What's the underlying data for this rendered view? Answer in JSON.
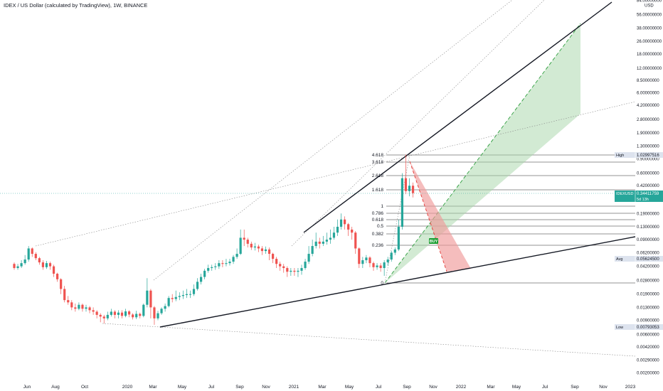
{
  "header": {
    "title": "IDEX / US Dollar (calculated by TradingView), 1W, BINANCE"
  },
  "colors": {
    "up": "#26a69a",
    "down": "#ef5350",
    "long_zone": "#a5d6a7",
    "short_zone": "#ef9a9a",
    "price_tag": "#26a69a",
    "buy_tag": "#1b9e32"
  },
  "chart_data": {
    "type": "candlestick",
    "title": "IDEX / US Dollar (calculated by TradingView), 1W, BINANCE",
    "y_scale": "log",
    "y_unit": "USD",
    "ylim": [
      0.002,
      84
    ],
    "x_ticks": [
      "Jun",
      "Aug",
      "Oct",
      "2020",
      "Mar",
      "May",
      "Jul",
      "Sep",
      "Nov",
      "2021",
      "Mar",
      "May",
      "Jul",
      "Sep",
      "Nov",
      "2022",
      "Mar",
      "May",
      "Jul",
      "Sep",
      "Nov",
      "2023"
    ],
    "y_ticks": [
      "84.00000000",
      "56.00000000",
      "38.00000000",
      "26.00000000",
      "18.00000000",
      "12.00000000",
      "8.50000000",
      "6.00000000",
      "4.20000000",
      "2.80000000",
      "1.90000000",
      "1.30000000",
      "0.90000000",
      "0.60000000",
      "0.42000000",
      "0.29000000",
      "0.19000000",
      "0.13000000",
      "0.09000000",
      "0.06200000",
      "0.04200000",
      "0.02800000",
      "0.01900000",
      "0.01300000",
      "0.00900000",
      "0.00600000",
      "0.00420000",
      "0.00290000",
      "0.00200000"
    ],
    "fib_levels": [
      "4.618",
      "3.618",
      "2.618",
      "1.618",
      "1",
      "0.786",
      "0.618",
      "0.5",
      "0.382",
      "0.236",
      "0"
    ],
    "markers": [
      {
        "label": "High",
        "value": "1.02997516"
      },
      {
        "label": "IDEXUSD",
        "value": "0.34411759",
        "sub": "5d 13h"
      },
      {
        "label": "Avg",
        "value": "0.05624500"
      },
      {
        "label": "Low",
        "value": "0.00793053"
      }
    ],
    "annotation": "BUY",
    "currency": "USD",
    "candles": [
      [
        0.045,
        0.04,
        0.047,
        0.038
      ],
      [
        0.04,
        0.042,
        0.045,
        0.038
      ],
      [
        0.042,
        0.046,
        0.05,
        0.04
      ],
      [
        0.046,
        0.051,
        0.058,
        0.044
      ],
      [
        0.051,
        0.07,
        0.075,
        0.048
      ],
      [
        0.07,
        0.06,
        0.072,
        0.055
      ],
      [
        0.06,
        0.053,
        0.063,
        0.05
      ],
      [
        0.053,
        0.047,
        0.055,
        0.044
      ],
      [
        0.047,
        0.041,
        0.05,
        0.038
      ],
      [
        0.041,
        0.046,
        0.049,
        0.039
      ],
      [
        0.046,
        0.042,
        0.048,
        0.038
      ],
      [
        0.042,
        0.034,
        0.044,
        0.031
      ],
      [
        0.034,
        0.029,
        0.035,
        0.027
      ],
      [
        0.029,
        0.022,
        0.03,
        0.019
      ],
      [
        0.022,
        0.016,
        0.024,
        0.015
      ],
      [
        0.016,
        0.015,
        0.018,
        0.014
      ],
      [
        0.015,
        0.013,
        0.016,
        0.012
      ],
      [
        0.013,
        0.0125,
        0.0145,
        0.0115
      ],
      [
        0.0125,
        0.014,
        0.015,
        0.012
      ],
      [
        0.014,
        0.0125,
        0.0145,
        0.0115
      ],
      [
        0.0125,
        0.013,
        0.014,
        0.0115
      ],
      [
        0.013,
        0.012,
        0.0135,
        0.011
      ],
      [
        0.012,
        0.0115,
        0.013,
        0.0105
      ],
      [
        0.0115,
        0.0105,
        0.012,
        0.0095
      ],
      [
        0.0105,
        0.01,
        0.011,
        0.0085
      ],
      [
        0.01,
        0.0095,
        0.0105,
        0.0082
      ],
      [
        0.0095,
        0.0105,
        0.0115,
        0.009
      ],
      [
        0.0105,
        0.0115,
        0.0125,
        0.01
      ],
      [
        0.0115,
        0.0105,
        0.012,
        0.0095
      ],
      [
        0.0105,
        0.0112,
        0.012,
        0.0095
      ],
      [
        0.0112,
        0.0102,
        0.012,
        0.0095
      ],
      [
        0.0102,
        0.0116,
        0.0125,
        0.0098
      ],
      [
        0.0116,
        0.0106,
        0.012,
        0.0098
      ],
      [
        0.0106,
        0.0098,
        0.011,
        0.0092
      ],
      [
        0.0098,
        0.0108,
        0.0118,
        0.0093
      ],
      [
        0.0108,
        0.0102,
        0.0112,
        0.0095
      ],
      [
        0.0102,
        0.014,
        0.0145,
        0.0098
      ],
      [
        0.014,
        0.021,
        0.03,
        0.013
      ],
      [
        0.021,
        0.013,
        0.022,
        0.0095
      ],
      [
        0.013,
        0.0095,
        0.0135,
        0.0079
      ],
      [
        0.0095,
        0.011,
        0.0118,
        0.009
      ],
      [
        0.011,
        0.0125,
        0.013,
        0.0105
      ],
      [
        0.0125,
        0.0135,
        0.0145,
        0.0115
      ],
      [
        0.0135,
        0.017,
        0.018,
        0.013
      ],
      [
        0.017,
        0.0165,
        0.019,
        0.015
      ],
      [
        0.0165,
        0.0175,
        0.021,
        0.0155
      ],
      [
        0.0175,
        0.018,
        0.02,
        0.016
      ],
      [
        0.018,
        0.0185,
        0.021,
        0.0165
      ],
      [
        0.0185,
        0.019,
        0.022,
        0.017
      ],
      [
        0.019,
        0.019,
        0.021,
        0.017
      ],
      [
        0.019,
        0.022,
        0.025,
        0.018
      ],
      [
        0.022,
        0.027,
        0.03,
        0.021
      ],
      [
        0.027,
        0.031,
        0.034,
        0.025
      ],
      [
        0.031,
        0.037,
        0.039,
        0.029
      ],
      [
        0.037,
        0.04,
        0.044,
        0.035
      ],
      [
        0.04,
        0.041,
        0.044,
        0.037
      ],
      [
        0.041,
        0.042,
        0.046,
        0.038
      ],
      [
        0.042,
        0.046,
        0.05,
        0.039
      ],
      [
        0.046,
        0.045,
        0.05,
        0.041
      ],
      [
        0.045,
        0.046,
        0.052,
        0.042
      ],
      [
        0.046,
        0.048,
        0.052,
        0.043
      ],
      [
        0.048,
        0.055,
        0.058,
        0.045
      ],
      [
        0.055,
        0.06,
        0.07,
        0.052
      ],
      [
        0.06,
        0.095,
        0.12,
        0.058
      ],
      [
        0.095,
        0.09,
        0.12,
        0.075
      ],
      [
        0.09,
        0.08,
        0.095,
        0.072
      ],
      [
        0.08,
        0.072,
        0.085,
        0.067
      ],
      [
        0.072,
        0.074,
        0.082,
        0.066
      ],
      [
        0.074,
        0.07,
        0.078,
        0.063
      ],
      [
        0.07,
        0.065,
        0.075,
        0.058
      ],
      [
        0.065,
        0.068,
        0.074,
        0.06
      ],
      [
        0.068,
        0.06,
        0.072,
        0.05
      ],
      [
        0.06,
        0.052,
        0.062,
        0.046
      ],
      [
        0.052,
        0.045,
        0.055,
        0.04
      ],
      [
        0.045,
        0.042,
        0.048,
        0.037
      ],
      [
        0.042,
        0.04,
        0.045,
        0.035
      ],
      [
        0.04,
        0.036,
        0.042,
        0.031
      ],
      [
        0.036,
        0.037,
        0.04,
        0.032
      ],
      [
        0.037,
        0.036,
        0.04,
        0.032
      ],
      [
        0.036,
        0.037,
        0.04,
        0.031
      ],
      [
        0.037,
        0.04,
        0.044,
        0.033
      ],
      [
        0.04,
        0.048,
        0.052,
        0.038
      ],
      [
        0.048,
        0.06,
        0.075,
        0.045
      ],
      [
        0.06,
        0.075,
        0.09,
        0.056
      ],
      [
        0.075,
        0.085,
        0.11,
        0.07
      ],
      [
        0.085,
        0.08,
        0.095,
        0.07
      ],
      [
        0.08,
        0.085,
        0.1,
        0.075
      ],
      [
        0.085,
        0.09,
        0.11,
        0.078
      ],
      [
        0.09,
        0.095,
        0.12,
        0.08
      ],
      [
        0.095,
        0.11,
        0.13,
        0.09
      ],
      [
        0.11,
        0.13,
        0.16,
        0.1
      ],
      [
        0.13,
        0.16,
        0.19,
        0.12
      ],
      [
        0.16,
        0.14,
        0.175,
        0.12
      ],
      [
        0.14,
        0.12,
        0.145,
        0.1
      ],
      [
        0.12,
        0.11,
        0.13,
        0.09
      ],
      [
        0.11,
        0.07,
        0.115,
        0.06
      ],
      [
        0.07,
        0.045,
        0.072,
        0.04
      ],
      [
        0.045,
        0.05,
        0.055,
        0.04
      ],
      [
        0.05,
        0.054,
        0.058,
        0.046
      ],
      [
        0.054,
        0.046,
        0.056,
        0.041
      ],
      [
        0.046,
        0.041,
        0.048,
        0.037
      ],
      [
        0.041,
        0.043,
        0.046,
        0.038
      ],
      [
        0.043,
        0.04,
        0.046,
        0.036
      ],
      [
        0.04,
        0.047,
        0.05,
        0.032
      ],
      [
        0.047,
        0.051,
        0.055,
        0.043
      ],
      [
        0.051,
        0.062,
        0.065,
        0.048
      ],
      [
        0.062,
        0.068,
        0.072,
        0.058
      ],
      [
        0.068,
        0.13,
        0.16,
        0.065
      ],
      [
        0.13,
        0.52,
        0.6,
        0.12
      ],
      [
        0.52,
        0.36,
        1.02,
        0.33
      ],
      [
        0.36,
        0.42,
        0.52,
        0.31
      ],
      [
        0.42,
        0.34,
        0.46,
        0.3
      ]
    ]
  }
}
